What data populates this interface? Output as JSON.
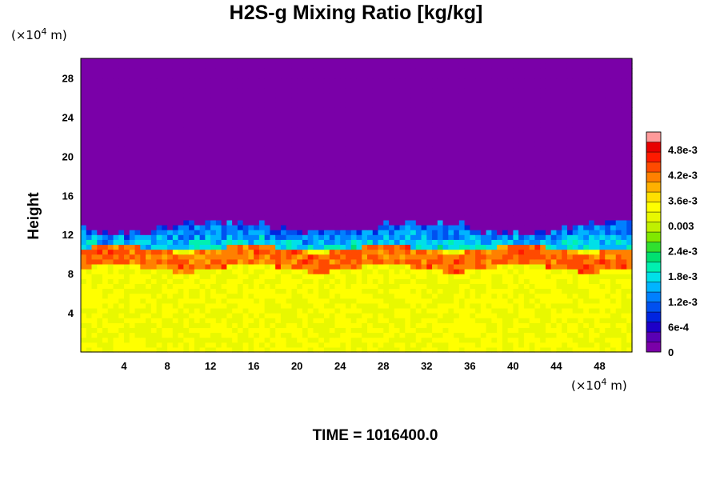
{
  "chart_data": {
    "type": "heatmap",
    "title": "H2S-g Mixing Ratio [kg/kg]",
    "ylabel": "Height",
    "x_unit": {
      "prefix": "(×10",
      "exp": "4",
      "suffix": " m)"
    },
    "y_unit": {
      "prefix": "(×10",
      "exp": "4",
      "suffix": " m)"
    },
    "xlim": [
      0,
      51
    ],
    "ylim": [
      0,
      30
    ],
    "x_ticks": [
      "4",
      "8",
      "12",
      "16",
      "20",
      "24",
      "28",
      "32",
      "36",
      "40",
      "44",
      "48"
    ],
    "y_ticks": [
      "4",
      "8",
      "12",
      "16",
      "20",
      "24",
      "28"
    ],
    "colorbar_ticks": [
      "0",
      "6e-4",
      "1.2e-3",
      "1.8e-3",
      "2.4e-3",
      "0.003",
      "3.6e-3",
      "4.2e-3",
      "4.8e-3"
    ],
    "colorbar_range": [
      0,
      0.0054
    ],
    "colors": [
      "#7a00a8",
      "#5a00b4",
      "#1d00c8",
      "#0024e0",
      "#0050f0",
      "#0080ff",
      "#00b4ff",
      "#00e0e8",
      "#00f0b0",
      "#00e070",
      "#30e030",
      "#80e800",
      "#c0f000",
      "#e8f800",
      "#ffff00",
      "#ffe000",
      "#ffb000",
      "#ff8000",
      "#ff4a00",
      "#ff1a00",
      "#e80000",
      "#ff9a9a"
    ],
    "fields": {
      "background_value": 0,
      "top_of_mixed_layer_height": 13.2,
      "lower_region_value": 0.0036,
      "upper_band_value": 0.0015,
      "peak_band_value": 0.0047,
      "peak_band_height": 9.6
    },
    "footer": "TIME = 1016400.0"
  }
}
